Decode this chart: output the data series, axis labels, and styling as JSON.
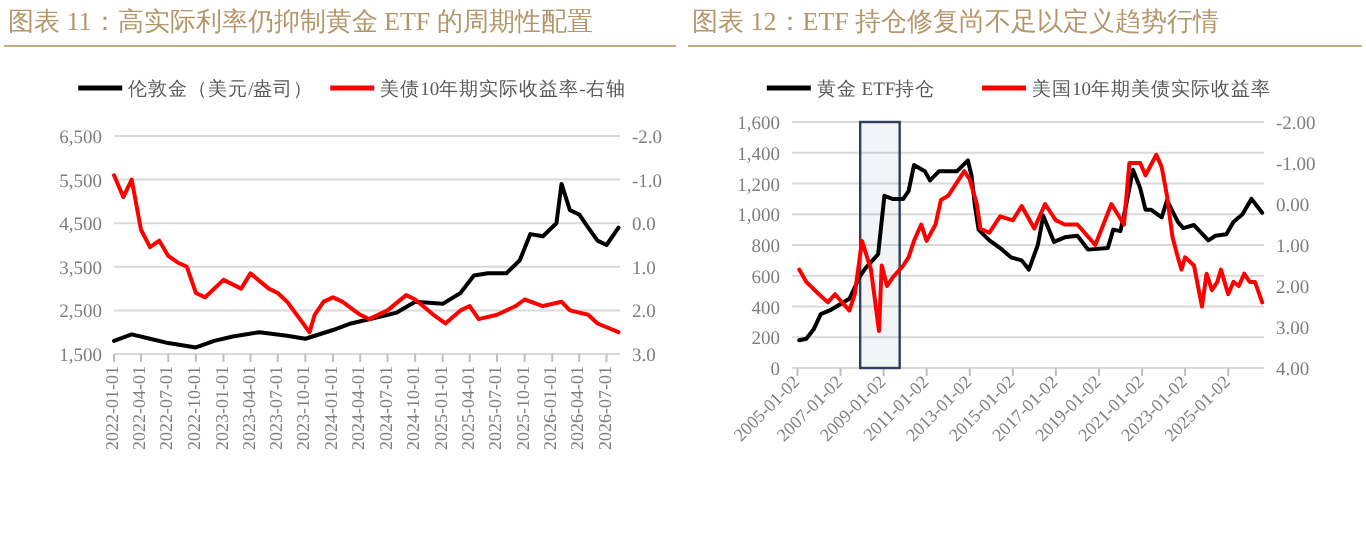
{
  "chart_data": [
    {
      "type": "line",
      "title": "图表 11：高实际利率仍抑制黄金 ETF 的周期性配置",
      "legend": "top",
      "grid": "y",
      "xlim": [
        "2022-01-01",
        "2026-08-15"
      ],
      "xticks": [
        {
          "value": "2022-01-01",
          "label": "2022-01-01"
        },
        {
          "value": "2022-04-01",
          "label": "2022-04-01"
        },
        {
          "value": "2022-07-01",
          "label": "2022-07-01"
        },
        {
          "value": "2022-10-01",
          "label": "2022-10-01"
        },
        {
          "value": "2023-01-01",
          "label": "2023-01-01"
        },
        {
          "value": "2023-04-01",
          "label": "2023-04-01"
        },
        {
          "value": "2023-07-01",
          "label": "2023-07-01"
        },
        {
          "value": "2023-10-01",
          "label": "2023-10-01"
        },
        {
          "value": "2024-01-01",
          "label": "2024-01-01"
        },
        {
          "value": "2024-04-01",
          "label": "2024-04-01"
        },
        {
          "value": "2024-07-01",
          "label": "2024-07-01"
        },
        {
          "value": "2024-10-01",
          "label": "2024-10-01"
        },
        {
          "value": "2025-01-01",
          "label": "2025-01-01"
        },
        {
          "value": "2025-04-01",
          "label": "2025-04-01"
        },
        {
          "value": "2025-07-01",
          "label": "2025-07-01"
        },
        {
          "value": "2025-10-01",
          "label": "2025-10-01"
        },
        {
          "value": "2026-01-01",
          "label": "2026-01-01"
        },
        {
          "value": "2026-04-01",
          "label": "2026-04-01"
        },
        {
          "value": "2026-07-01",
          "label": "2026-07-01"
        }
      ],
      "ylim": [
        1500,
        6500
      ],
      "yticks": [
        {
          "value": 1500,
          "label": "1,500"
        },
        {
          "value": 2500,
          "label": "2,500"
        },
        {
          "value": 3500,
          "label": "3,500"
        },
        {
          "value": 4500,
          "label": "4,500"
        },
        {
          "value": 5500,
          "label": "5,500"
        },
        {
          "value": 6500,
          "label": "6,500"
        }
      ],
      "y2lim": [
        3,
        -2
      ],
      "y2ticks": [
        {
          "value": -2,
          "label": "-2.0"
        },
        {
          "value": -1,
          "label": "-1.0"
        },
        {
          "value": 0,
          "label": "0.0"
        },
        {
          "value": 1,
          "label": "1.0"
        },
        {
          "value": 2,
          "label": "2.0"
        },
        {
          "value": 3,
          "label": "3.0"
        }
      ],
      "series": [
        {
          "name": "伦敦金（美元/盎司）",
          "color": "#000000",
          "x": [
            "2022-01-01",
            "2022-03-01",
            "2022-05-01",
            "2022-07-01",
            "2022-10-01",
            "2022-12-01",
            "2023-02-01",
            "2023-05-01",
            "2023-08-01",
            "2023-10-01",
            "2024-01-01",
            "2024-03-01",
            "2024-06-01",
            "2024-08-01",
            "2024-10-01",
            "2025-01-01",
            "2025-03-01",
            "2025-04-15",
            "2025-06-01",
            "2025-08-01",
            "2025-09-15",
            "2025-10-20",
            "2025-12-01",
            "2026-01-15",
            "2026-02-01",
            "2026-03-01",
            "2026-04-01",
            "2026-05-01",
            "2026-06-01",
            "2026-07-01",
            "2026-08-10"
          ],
          "values": [
            1800,
            1950,
            1850,
            1750,
            1650,
            1800,
            1900,
            2000,
            1920,
            1850,
            2050,
            2200,
            2350,
            2450,
            2700,
            2650,
            2900,
            3300,
            3350,
            3350,
            3650,
            4250,
            4200,
            4500,
            5400,
            4800,
            4700,
            4400,
            4100,
            4000,
            4400
          ]
        },
        {
          "name": "美债10年期实际收益率-右轴",
          "color": "#ff0000",
          "axis": "y2",
          "x": [
            "2022-01-01",
            "2022-02-01",
            "2022-03-01",
            "2022-04-01",
            "2022-05-01",
            "2022-06-01",
            "2022-07-01",
            "2022-08-01",
            "2022-09-01",
            "2022-10-01",
            "2022-11-01",
            "2023-01-01",
            "2023-03-01",
            "2023-04-01",
            "2023-06-01",
            "2023-07-01",
            "2023-08-01",
            "2023-10-15",
            "2023-11-01",
            "2023-12-01",
            "2024-01-01",
            "2024-02-01",
            "2024-04-01",
            "2024-05-01",
            "2024-07-01",
            "2024-09-01",
            "2024-10-01",
            "2024-12-01",
            "2025-01-10",
            "2025-03-01",
            "2025-04-01",
            "2025-05-01",
            "2025-07-01",
            "2025-09-01",
            "2025-10-01",
            "2025-12-01",
            "2026-02-01",
            "2026-03-01",
            "2026-05-01",
            "2026-06-01",
            "2026-08-10"
          ],
          "values": [
            -1.1,
            -0.6,
            -1.0,
            0.15,
            0.55,
            0.4,
            0.75,
            0.9,
            1.0,
            1.6,
            1.7,
            1.3,
            1.5,
            1.15,
            1.5,
            1.6,
            1.8,
            2.5,
            2.1,
            1.8,
            1.7,
            1.8,
            2.1,
            2.2,
            2.0,
            1.65,
            1.75,
            2.1,
            2.3,
            2.0,
            1.9,
            2.2,
            2.1,
            1.9,
            1.75,
            1.9,
            1.8,
            2.0,
            2.1,
            2.3,
            2.5
          ]
        }
      ]
    },
    {
      "type": "line",
      "title": "图表 12：ETF 持仓修复尚不足以定义趋势行情",
      "legend": "top",
      "grid": "y",
      "xlim": [
        "2004-10-01",
        "2026-09-01"
      ],
      "xticks": [
        {
          "value": "2005-01-02",
          "label": "2005-01-02"
        },
        {
          "value": "2007-01-02",
          "label": "2007-01-02"
        },
        {
          "value": "2009-01-02",
          "label": "2009-01-02"
        },
        {
          "value": "2011-01-02",
          "label": "2011-01-02"
        },
        {
          "value": "2013-01-02",
          "label": "2013-01-02"
        },
        {
          "value": "2015-01-02",
          "label": "2015-01-02"
        },
        {
          "value": "2017-01-02",
          "label": "2017-01-02"
        },
        {
          "value": "2019-01-02",
          "label": "2019-01-02"
        },
        {
          "value": "2021-01-02",
          "label": "2021-01-02"
        },
        {
          "value": "2023-01-02",
          "label": "2023-01-02"
        },
        {
          "value": "2025-01-02",
          "label": "2025-01-02"
        }
      ],
      "ylim": [
        0,
        1600
      ],
      "yticks": [
        0,
        200,
        400,
        600,
        800,
        {
          "value": 1000,
          "label": "1,000"
        },
        {
          "value": 1200,
          "label": "1,200"
        },
        {
          "value": 1400,
          "label": "1,400"
        },
        {
          "value": 1600,
          "label": "1,600"
        }
      ],
      "y2lim": [
        4,
        -2
      ],
      "y2ticks": [
        {
          "value": -2,
          "label": "-2.00"
        },
        {
          "value": -1,
          "label": "-1.00"
        },
        {
          "value": 0,
          "label": "0.00"
        },
        {
          "value": 1,
          "label": "1.00"
        },
        {
          "value": 2,
          "label": "2.00"
        },
        {
          "value": 3,
          "label": "3.00"
        },
        {
          "value": 4,
          "label": "4.00"
        }
      ],
      "bands": [
        {
          "axis": "x",
          "from": "2007-12-01",
          "to": "2009-10-01",
          "color": "#2f3f5f"
        }
      ],
      "series": [
        {
          "name": "黄金 ETF持仓",
          "color": "#000000",
          "x": [
            "2005-02-01",
            "2005-06-01",
            "2005-10-01",
            "2006-02-01",
            "2006-08-01",
            "2007-06-01",
            "2007-12-01",
            "2008-03-01",
            "2008-10-01",
            "2009-01-15",
            "2009-06-01",
            "2009-12-01",
            "2010-03-01",
            "2010-06-01",
            "2010-12-01",
            "2011-03-01",
            "2011-08-01",
            "2012-06-01",
            "2012-12-01",
            "2013-02-01",
            "2013-04-01",
            "2013-06-01",
            "2013-12-01",
            "2014-06-01",
            "2014-12-01",
            "2015-06-01",
            "2015-10-01",
            "2016-03-01",
            "2016-06-01",
            "2016-12-01",
            "2017-06-01",
            "2018-01-01",
            "2018-07-01",
            "2019-06-01",
            "2019-09-01",
            "2020-01-01",
            "2020-04-01",
            "2020-08-01",
            "2020-12-01",
            "2021-03-01",
            "2021-06-01",
            "2021-12-01",
            "2022-03-01",
            "2022-09-01",
            "2022-12-01",
            "2023-06-01",
            "2024-02-01",
            "2024-06-01",
            "2024-12-01",
            "2025-04-01",
            "2025-09-01",
            "2026-02-01",
            "2026-08-01"
          ],
          "values": [
            180,
            190,
            250,
            350,
            380,
            450,
            600,
            650,
            740,
            1120,
            1100,
            1100,
            1150,
            1320,
            1280,
            1220,
            1280,
            1280,
            1350,
            1250,
            1050,
            900,
            830,
            780,
            720,
            700,
            640,
            800,
            990,
            820,
            850,
            860,
            770,
            780,
            900,
            890,
            1050,
            1290,
            1170,
            1030,
            1030,
            980,
            1090,
            950,
            910,
            930,
            830,
            860,
            870,
            950,
            1000,
            1100,
            1010
          ]
        },
        {
          "name": "美国10年期美债实际收益率",
          "color": "#ff0000",
          "axis": "y2",
          "x": [
            "2005-02-01",
            "2005-06-01",
            "2006-01-01",
            "2006-06-01",
            "2006-10-01",
            "2007-06-01",
            "2007-09-01",
            "2008-01-01",
            "2008-06-01",
            "2008-10-15",
            "2008-12-01",
            "2009-03-01",
            "2009-06-01",
            "2009-12-01",
            "2010-03-01",
            "2010-06-01",
            "2010-10-01",
            "2011-01-01",
            "2011-06-01",
            "2011-09-01",
            "2012-01-01",
            "2012-10-01",
            "2013-01-01",
            "2013-05-01",
            "2013-07-01",
            "2013-12-01",
            "2014-06-01",
            "2015-01-01",
            "2015-06-01",
            "2016-01-01",
            "2016-07-01",
            "2017-01-01",
            "2017-06-01",
            "2018-01-01",
            "2018-11-01",
            "2019-08-01",
            "2020-03-01",
            "2020-06-01",
            "2020-12-01",
            "2021-03-01",
            "2021-09-01",
            "2021-12-01",
            "2022-03-01",
            "2022-06-01",
            "2022-09-01",
            "2022-11-01",
            "2023-01-01",
            "2023-06-01",
            "2023-10-15",
            "2024-01-01",
            "2024-04-01",
            "2024-07-01",
            "2024-09-01",
            "2025-01-01",
            "2025-04-01",
            "2025-07-01",
            "2025-10-01",
            "2026-01-01",
            "2026-04-01",
            "2026-08-01"
          ],
          "values": [
            1.6,
            1.9,
            2.2,
            2.4,
            2.2,
            2.6,
            2.2,
            0.9,
            1.6,
            3.1,
            1.5,
            2.0,
            1.8,
            1.5,
            1.3,
            0.9,
            0.5,
            0.9,
            0.5,
            -0.1,
            -0.2,
            -0.8,
            -0.6,
            0.0,
            0.6,
            0.7,
            0.3,
            0.4,
            0.05,
            0.6,
            0.0,
            0.4,
            0.5,
            0.5,
            1.0,
            0.0,
            0.5,
            -1.0,
            -1.0,
            -0.7,
            -1.2,
            -0.9,
            -0.2,
            0.8,
            1.3,
            1.6,
            1.3,
            1.5,
            2.5,
            1.7,
            2.1,
            1.9,
            1.6,
            2.2,
            1.9,
            2.0,
            1.7,
            1.9,
            1.9,
            2.4
          ]
        }
      ]
    }
  ]
}
